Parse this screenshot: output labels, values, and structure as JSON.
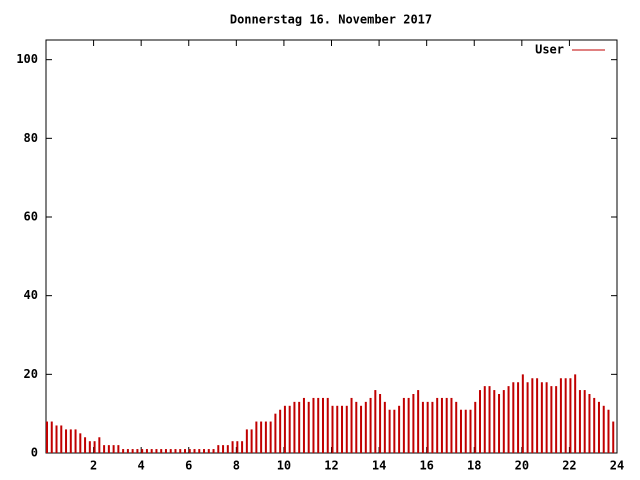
{
  "chart_data": {
    "type": "impulse",
    "title": "Donnerstag 16. November 2017",
    "x": [
      0,
      0.2,
      0.4,
      0.6,
      0.8,
      1,
      1.2,
      1.4,
      1.6,
      1.8,
      2,
      2.2,
      2.4,
      2.6,
      2.8,
      3,
      3.2,
      3.4,
      3.6,
      3.8,
      4,
      4.2,
      4.4,
      4.6,
      4.8,
      5,
      5.2,
      5.4,
      5.6,
      5.8,
      6,
      6.2,
      6.4,
      6.6,
      6.8,
      7,
      7.2,
      7.4,
      7.6,
      7.8,
      8,
      8.2,
      8.4,
      8.6,
      8.8,
      9,
      9.2,
      9.4,
      9.6,
      9.8,
      10,
      10.2,
      10.4,
      10.6,
      10.8,
      11,
      11.2,
      11.4,
      11.6,
      11.8,
      12,
      12.2,
      12.4,
      12.6,
      12.8,
      13,
      13.2,
      13.4,
      13.6,
      13.8,
      14,
      14.2,
      14.4,
      14.6,
      14.8,
      15,
      15.2,
      15.4,
      15.6,
      15.8,
      16,
      16.2,
      16.4,
      16.6,
      16.8,
      17,
      17.2,
      17.4,
      17.6,
      17.8,
      18,
      18.2,
      18.4,
      18.6,
      18.8,
      19,
      19.2,
      19.4,
      19.6,
      19.8,
      20,
      20.2,
      20.4,
      20.6,
      20.8,
      21,
      21.2,
      21.4,
      21.6,
      21.8,
      22,
      22.2,
      22.4,
      22.6,
      22.8,
      23,
      23.2,
      23.4,
      23.6,
      23.8
    ],
    "series": [
      {
        "name": "User",
        "color": "#c00000",
        "values": [
          8,
          8,
          7,
          7,
          6,
          6,
          6,
          5,
          4,
          3,
          3,
          4,
          2,
          2,
          2,
          2,
          1,
          1,
          1,
          1,
          1,
          1,
          1,
          1,
          1,
          1,
          1,
          1,
          1,
          1,
          1,
          1,
          1,
          1,
          1,
          1,
          2,
          2,
          2,
          3,
          3,
          3,
          6,
          6,
          8,
          8,
          8,
          8,
          10,
          11,
          12,
          12,
          13,
          13,
          14,
          13,
          14,
          14,
          14,
          14,
          12,
          12,
          12,
          12,
          14,
          13,
          12,
          13,
          14,
          16,
          15,
          13,
          11,
          11,
          12,
          14,
          14,
          15,
          16,
          13,
          13,
          13,
          14,
          14,
          14,
          14,
          13,
          11,
          11,
          11,
          13,
          16,
          17,
          17,
          16,
          15,
          16,
          17,
          18,
          18,
          20,
          18,
          19,
          19,
          18,
          18,
          17,
          17,
          19,
          19,
          19,
          20,
          16,
          16,
          15,
          14,
          13,
          12,
          11,
          8
        ]
      }
    ],
    "xlim": [
      0,
      24
    ],
    "xticks": [
      2,
      4,
      6,
      8,
      10,
      12,
      14,
      16,
      18,
      20,
      22,
      24
    ],
    "ylim": [
      0,
      105
    ],
    "yticks": [
      0,
      20,
      40,
      60,
      80,
      100
    ],
    "legend": "upper right"
  }
}
